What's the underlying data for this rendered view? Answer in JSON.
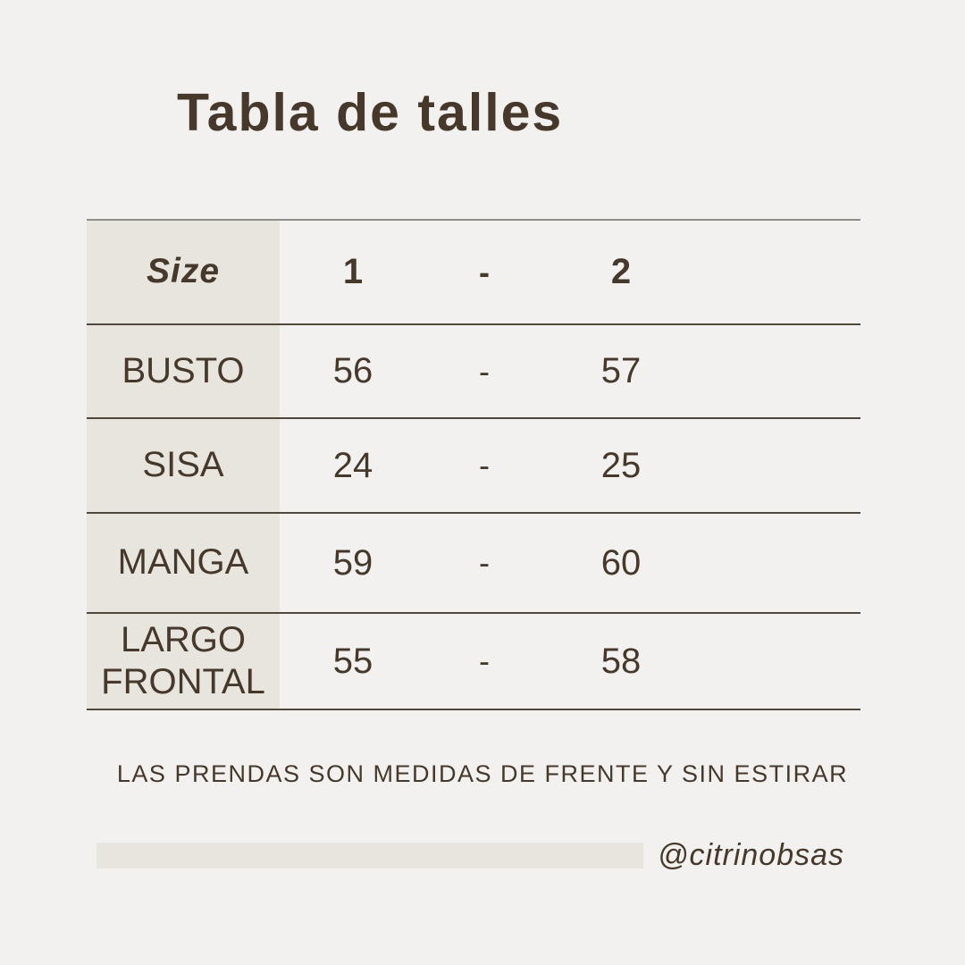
{
  "page": {
    "title": "Tabla de talles",
    "note": "LAS PRENDAS SON MEDIDAS DE FRENTE Y SIN ESTIRAR",
    "handle": "@citrinobsas",
    "colors": {
      "background": "#f2f1ef",
      "text": "#46392c",
      "label_column_bg": "#e8e5df",
      "top_line": "#908c87",
      "row_line": "#51473d",
      "footer_bar": "#e8e5df"
    }
  },
  "size_table": {
    "header": {
      "label": "Size",
      "size_1": "1",
      "separator": "-",
      "size_2": "2"
    },
    "rows": [
      {
        "label": "BUSTO",
        "size_1": "56",
        "separator": "-",
        "size_2": "57"
      },
      {
        "label": "SISA",
        "size_1": "24",
        "separator": "-",
        "size_2": "25"
      },
      {
        "label": "MANGA",
        "size_1": "59",
        "separator": "-",
        "size_2": "60"
      },
      {
        "label": "LARGO FRONTAL",
        "size_1": "55",
        "separator": "-",
        "size_2": "58"
      }
    ]
  }
}
